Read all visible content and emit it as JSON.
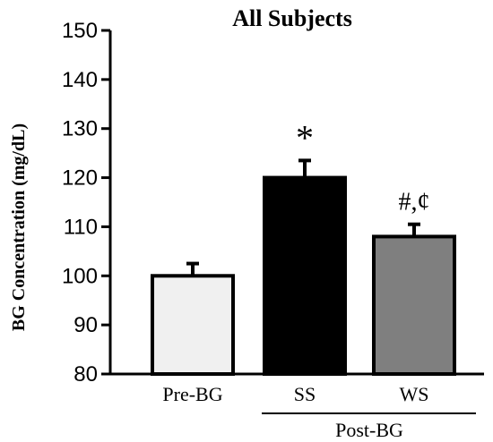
{
  "chart_data": {
    "type": "bar",
    "title": "All Subjects",
    "ylabel": "BG Concentration (mg/dL)",
    "xlabel": "",
    "ylim": [
      80,
      150
    ],
    "yticks": [
      80,
      90,
      100,
      110,
      120,
      130,
      140,
      150
    ],
    "grid": false,
    "categories": [
      "Pre-BG",
      "SS",
      "WS"
    ],
    "values": [
      100,
      120,
      108
    ],
    "errors": [
      2.5,
      3.5,
      2.5
    ],
    "bar_colors": [
      "#f0f0f0",
      "#000000",
      "#7f7f7f"
    ],
    "annotations": [
      "",
      "*",
      "#,¢"
    ],
    "group_label": "Post-BG",
    "group_categories": [
      "SS",
      "WS"
    ]
  }
}
